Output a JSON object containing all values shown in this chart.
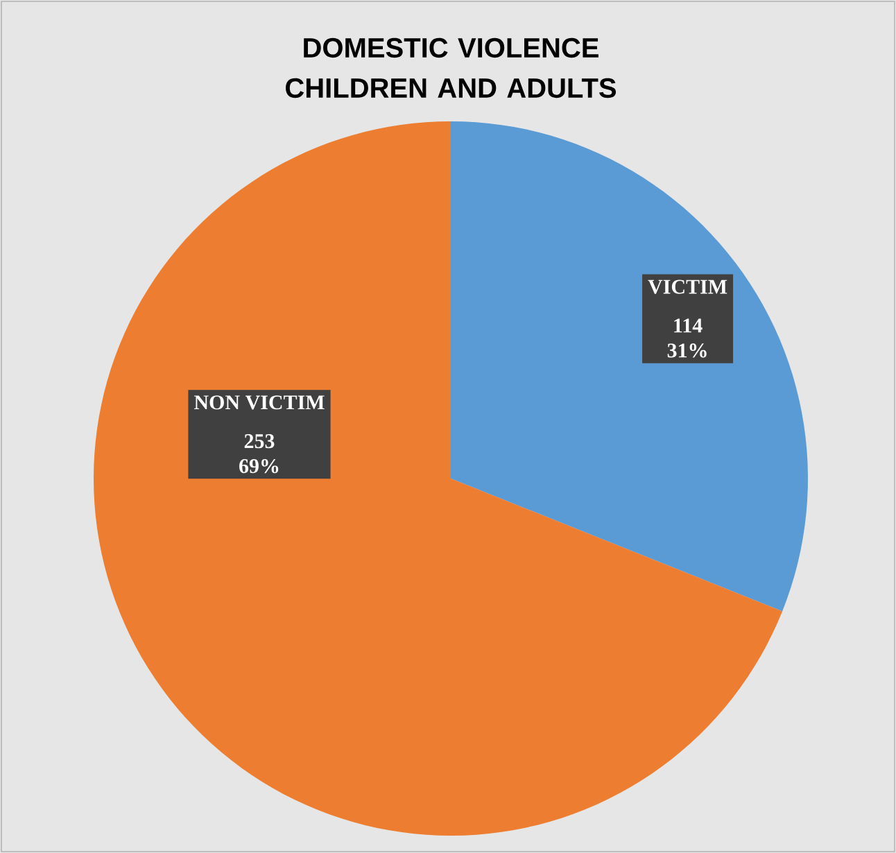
{
  "chart_data": {
    "type": "pie",
    "title": "DOMESTIC VIOLENCE CHILDREN AND ADULTS",
    "categories": [
      "VICTIM",
      "NON VICTIM"
    ],
    "values": [
      114,
      253
    ],
    "colors": [
      "#5b9bd5",
      "#ed7d31"
    ],
    "value_labels": [
      "114 31%",
      "253 69%"
    ]
  }
}
